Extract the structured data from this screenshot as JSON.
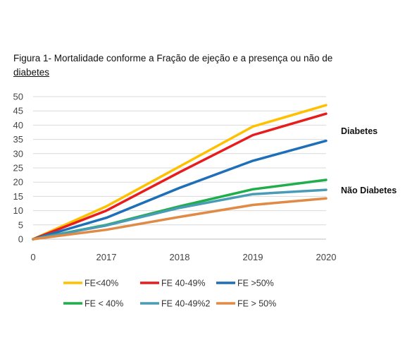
{
  "title": {
    "line1": "Figura 1- Mortalidade conforme a Fração de ejeção e a presença ou não de",
    "line2": "diabetes"
  },
  "chart_data": {
    "type": "line",
    "x": [
      "0",
      "2017",
      "2018",
      "2019",
      "2020"
    ],
    "ylim": [
      0,
      50
    ],
    "yticks": [
      0,
      5,
      10,
      15,
      20,
      25,
      30,
      35,
      40,
      45,
      50
    ],
    "grid": true,
    "legend_position": "bottom",
    "series": [
      {
        "name": "FE<40%",
        "values": [
          0,
          11.5,
          25.5,
          39.5,
          47
        ],
        "color": "#FFC000"
      },
      {
        "name": "FE 40-49%",
        "values": [
          0,
          10,
          23.5,
          36.5,
          44
        ],
        "color": "#E81C1C"
      },
      {
        "name": "FE >50%",
        "values": [
          0,
          7.5,
          18,
          27.5,
          34.5
        ],
        "color": "#1F6FB8"
      },
      {
        "name": "FE  < 40%",
        "values": [
          0,
          5,
          11.5,
          17.5,
          20.8
        ],
        "color": "#1FAE4B"
      },
      {
        "name": "FE 40-49%2",
        "values": [
          0,
          4.8,
          11,
          15.8,
          17.3
        ],
        "color": "#4A9BB5"
      },
      {
        "name": "FE > 50%",
        "values": [
          0,
          3.3,
          7.8,
          12,
          14.3
        ],
        "color": "#E08A45"
      }
    ],
    "annotations": [
      "Diabetes",
      "Não Diabetes"
    ]
  }
}
